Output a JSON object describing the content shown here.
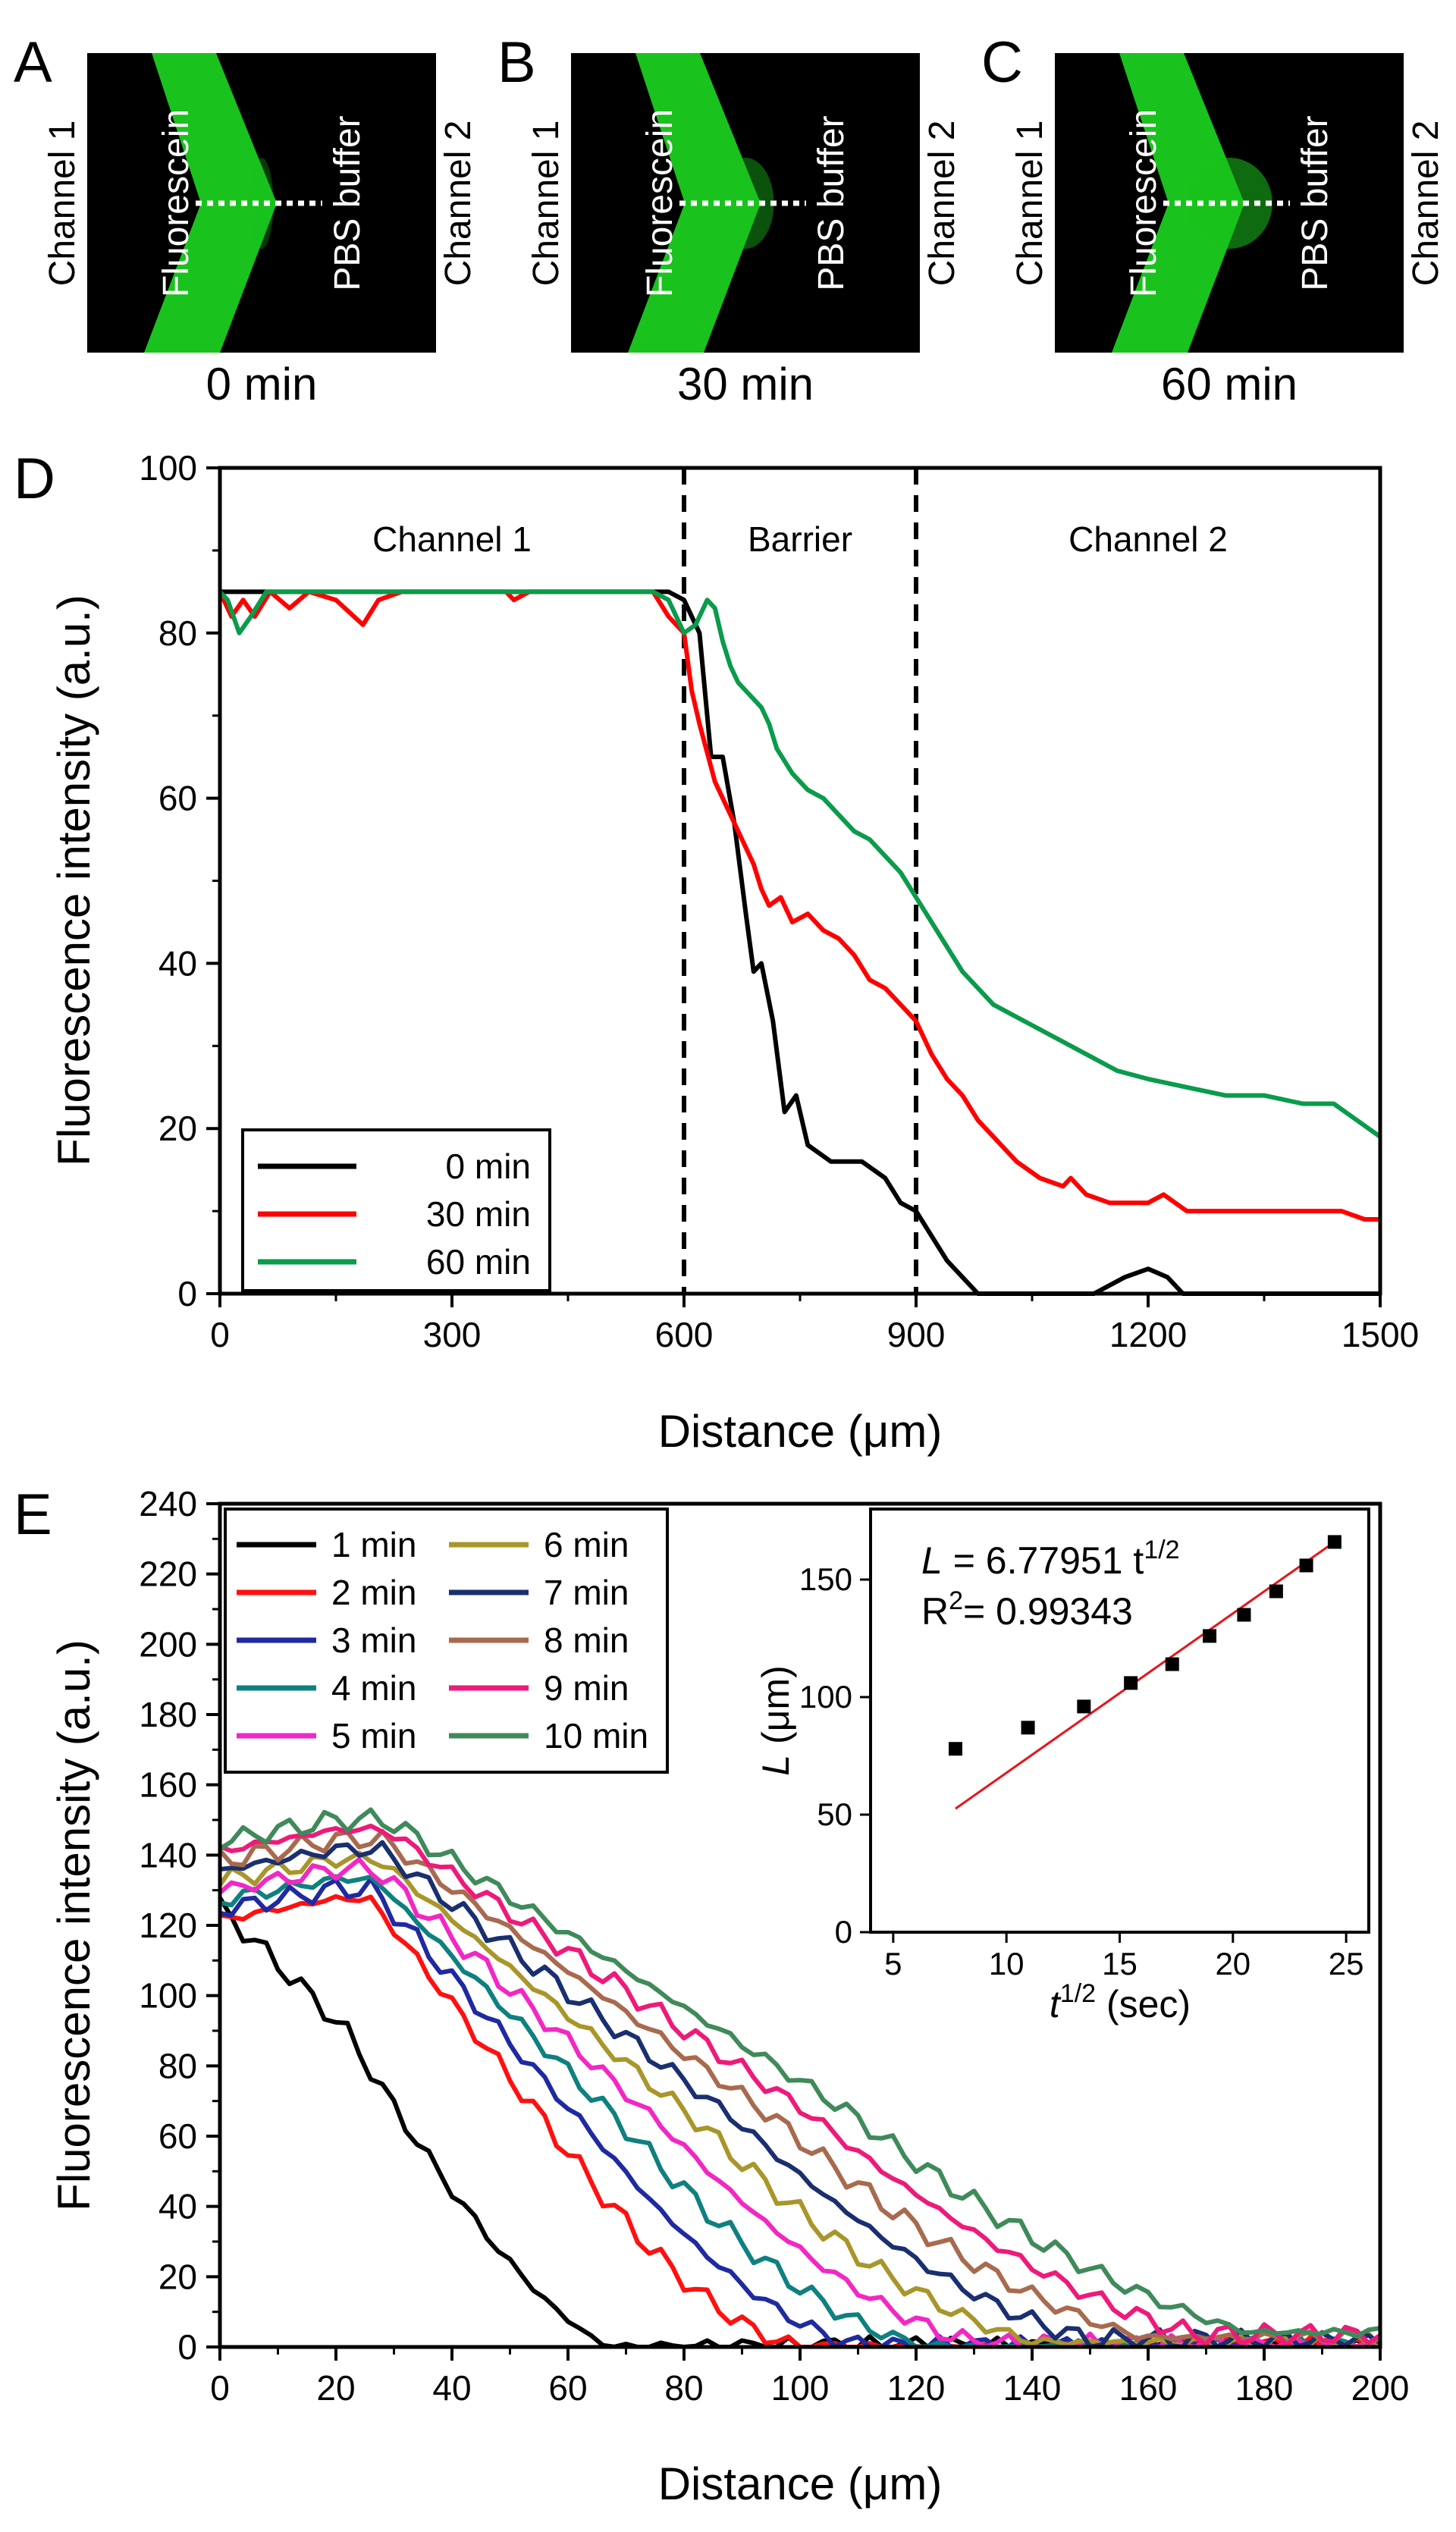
{
  "colors": {
    "micro_bg": "#000000",
    "fluorescein_green": "#19c21c",
    "dotted_line": "#ffffff",
    "inset_fit": "#e8141b"
  },
  "micrographs": [
    {
      "panel": "A",
      "time_label": "0 min",
      "left_channel": "Channel 1",
      "right_channel": "Channel 2",
      "fluorescein_label": "Fluorescein",
      "buffer_label": "PBS buffer",
      "diffusion_glow": 0.1
    },
    {
      "panel": "B",
      "time_label": "30 min",
      "left_channel": "Channel 1",
      "right_channel": "Channel 2",
      "fluorescein_label": "Fluorescein",
      "buffer_label": "PBS buffer",
      "diffusion_glow": 0.5
    },
    {
      "panel": "C",
      "time_label": "60 min",
      "left_channel": "Channel 1",
      "right_channel": "Channel 2",
      "fluorescein_label": "Fluorescein",
      "buffer_label": "PBS buffer",
      "diffusion_glow": 0.85
    }
  ],
  "chart_data": [
    {
      "panel": "D",
      "type": "line",
      "xlabel": "Distance (μm)",
      "ylabel": "Fluorescence intensity (a.u.)",
      "xlim": [
        0,
        1500
      ],
      "ylim": [
        0,
        100
      ],
      "xticks": [
        0,
        300,
        600,
        900,
        1200,
        1500
      ],
      "yticks": [
        0,
        20,
        40,
        60,
        80,
        100
      ],
      "region_labels": [
        {
          "text": "Channel 1",
          "x": 300
        },
        {
          "text": "Barrier",
          "x": 750
        },
        {
          "text": "Channel 2",
          "x": 1200
        }
      ],
      "dividers": [
        600,
        900
      ],
      "legend": {
        "position": "bottom-left"
      },
      "series": [
        {
          "name": "0 min",
          "color": "#000000",
          "points": [
            [
              0,
              85
            ],
            [
              580,
              85
            ],
            [
              600,
              84
            ],
            [
              620,
              80
            ],
            [
              635,
              65
            ],
            [
              650,
              65
            ],
            [
              665,
              57
            ],
            [
              680,
              46
            ],
            [
              690,
              39
            ],
            [
              700,
              40
            ],
            [
              715,
              33
            ],
            [
              730,
              22
            ],
            [
              745,
              24
            ],
            [
              760,
              18
            ],
            [
              790,
              16
            ],
            [
              830,
              16
            ],
            [
              860,
              14
            ],
            [
              880,
              11
            ],
            [
              900,
              10
            ],
            [
              920,
              7
            ],
            [
              940,
              4
            ],
            [
              960,
              2
            ],
            [
              980,
              0
            ],
            [
              1130,
              0
            ],
            [
              1170,
              2
            ],
            [
              1200,
              3
            ],
            [
              1225,
              2
            ],
            [
              1245,
              0
            ],
            [
              1500,
              0
            ]
          ]
        },
        {
          "name": "30 min",
          "color": "#ff0000",
          "points": [
            [
              0,
              85
            ],
            [
              15,
              82
            ],
            [
              30,
              84
            ],
            [
              45,
              82
            ],
            [
              65,
              85
            ],
            [
              90,
              83
            ],
            [
              115,
              85
            ],
            [
              150,
              84
            ],
            [
              185,
              81
            ],
            [
              205,
              84
            ],
            [
              235,
              85
            ],
            [
              300,
              85
            ],
            [
              370,
              85
            ],
            [
              380,
              84
            ],
            [
              400,
              85
            ],
            [
              560,
              85
            ],
            [
              580,
              82
            ],
            [
              600,
              80
            ],
            [
              610,
              73
            ],
            [
              620,
              69
            ],
            [
              640,
              62
            ],
            [
              660,
              58
            ],
            [
              675,
              55
            ],
            [
              690,
              52
            ],
            [
              700,
              49
            ],
            [
              710,
              47
            ],
            [
              725,
              48
            ],
            [
              740,
              45
            ],
            [
              760,
              46
            ],
            [
              780,
              44
            ],
            [
              800,
              43
            ],
            [
              820,
              41
            ],
            [
              840,
              38
            ],
            [
              860,
              37
            ],
            [
              880,
              35
            ],
            [
              900,
              33
            ],
            [
              920,
              29
            ],
            [
              940,
              26
            ],
            [
              960,
              24
            ],
            [
              980,
              21
            ],
            [
              1000,
              19
            ],
            [
              1030,
              16
            ],
            [
              1060,
              14
            ],
            [
              1090,
              13
            ],
            [
              1100,
              14
            ],
            [
              1120,
              12
            ],
            [
              1150,
              11
            ],
            [
              1180,
              11
            ],
            [
              1200,
              11
            ],
            [
              1220,
              12
            ],
            [
              1250,
              10
            ],
            [
              1300,
              10
            ],
            [
              1350,
              10
            ],
            [
              1400,
              10
            ],
            [
              1450,
              10
            ],
            [
              1480,
              9
            ],
            [
              1500,
              9
            ]
          ]
        },
        {
          "name": "60 min",
          "color": "#0a9b4b",
          "points": [
            [
              0,
              85
            ],
            [
              10,
              84
            ],
            [
              25,
              80
            ],
            [
              40,
              82
            ],
            [
              60,
              85
            ],
            [
              100,
              85
            ],
            [
              300,
              85
            ],
            [
              560,
              85
            ],
            [
              580,
              84
            ],
            [
              600,
              80
            ],
            [
              615,
              81
            ],
            [
              630,
              84
            ],
            [
              640,
              83
            ],
            [
              650,
              79
            ],
            [
              660,
              76
            ],
            [
              670,
              74
            ],
            [
              680,
              73
            ],
            [
              700,
              71
            ],
            [
              710,
              69
            ],
            [
              720,
              66
            ],
            [
              740,
              63
            ],
            [
              760,
              61
            ],
            [
              780,
              60
            ],
            [
              800,
              58
            ],
            [
              820,
              56
            ],
            [
              840,
              55
            ],
            [
              860,
              53
            ],
            [
              880,
              51
            ],
            [
              900,
              48
            ],
            [
              920,
              45
            ],
            [
              940,
              42
            ],
            [
              960,
              39
            ],
            [
              980,
              37
            ],
            [
              1000,
              35
            ],
            [
              1040,
              33
            ],
            [
              1080,
              31
            ],
            [
              1120,
              29
            ],
            [
              1160,
              27
            ],
            [
              1200,
              26
            ],
            [
              1250,
              25
            ],
            [
              1300,
              24
            ],
            [
              1350,
              24
            ],
            [
              1400,
              23
            ],
            [
              1440,
              23
            ],
            [
              1470,
              21
            ],
            [
              1500,
              19
            ]
          ]
        }
      ]
    },
    {
      "panel": "E",
      "type": "line",
      "xlabel": "Distance (μm)",
      "ylabel": "Fluorescence intensity (a.u.)",
      "xlim": [
        0,
        200
      ],
      "ylim": [
        0,
        240
      ],
      "xticks": [
        0,
        20,
        40,
        60,
        80,
        100,
        120,
        140,
        160,
        180,
        200
      ],
      "yticks": [
        0,
        20,
        40,
        60,
        80,
        100,
        120,
        140,
        160,
        180,
        200,
        220,
        240
      ],
      "legend": {
        "position": "top-left",
        "columns": 2
      },
      "series": [
        {
          "name": "1 min",
          "color": "#000000",
          "minute": 1
        },
        {
          "name": "2 min",
          "color": "#ff1010",
          "minute": 2
        },
        {
          "name": "3 min",
          "color": "#1f2aa0",
          "minute": 3
        },
        {
          "name": "4 min",
          "color": "#0f8080",
          "minute": 4
        },
        {
          "name": "5 min",
          "color": "#f227c4",
          "minute": 5
        },
        {
          "name": "6 min",
          "color": "#a8962a",
          "minute": 6
        },
        {
          "name": "7 min",
          "color": "#1a2f70",
          "minute": 7
        },
        {
          "name": "8 min",
          "color": "#a86a4f",
          "minute": 8
        },
        {
          "name": "9 min",
          "color": "#ee1a7a",
          "minute": 9
        },
        {
          "name": "10 min",
          "color": "#3f8a5a",
          "minute": 10
        }
      ],
      "inset": {
        "type": "scatter",
        "xlabel": "t",
        "xlabel_sup": "1/2",
        "xlabel_suffix": " (sec)",
        "ylabel": "L",
        "ylabel_suffix": " (μm)",
        "xlim": [
          4,
          26
        ],
        "ylim": [
          0,
          180
        ],
        "xticks": [
          5,
          10,
          15,
          20,
          25
        ],
        "yticks": [
          0,
          50,
          100,
          150
        ],
        "equation": {
          "lhs": "L",
          "rhs": " = 6.77951 t",
          "sup": "1/2"
        },
        "r_squared": {
          "label": "R",
          "sup": "2",
          "value": "= 0.99343"
        },
        "fit": {
          "slope": 6.77951,
          "x_range": [
            7.75,
            24.5
          ]
        },
        "points": [
          [
            7.75,
            78
          ],
          [
            10.95,
            87
          ],
          [
            13.42,
            96
          ],
          [
            15.49,
            106
          ],
          [
            17.32,
            114
          ],
          [
            18.97,
            126
          ],
          [
            20.49,
            135
          ],
          [
            21.91,
            145
          ],
          [
            23.24,
            156
          ],
          [
            24.49,
            166
          ]
        ]
      }
    }
  ]
}
